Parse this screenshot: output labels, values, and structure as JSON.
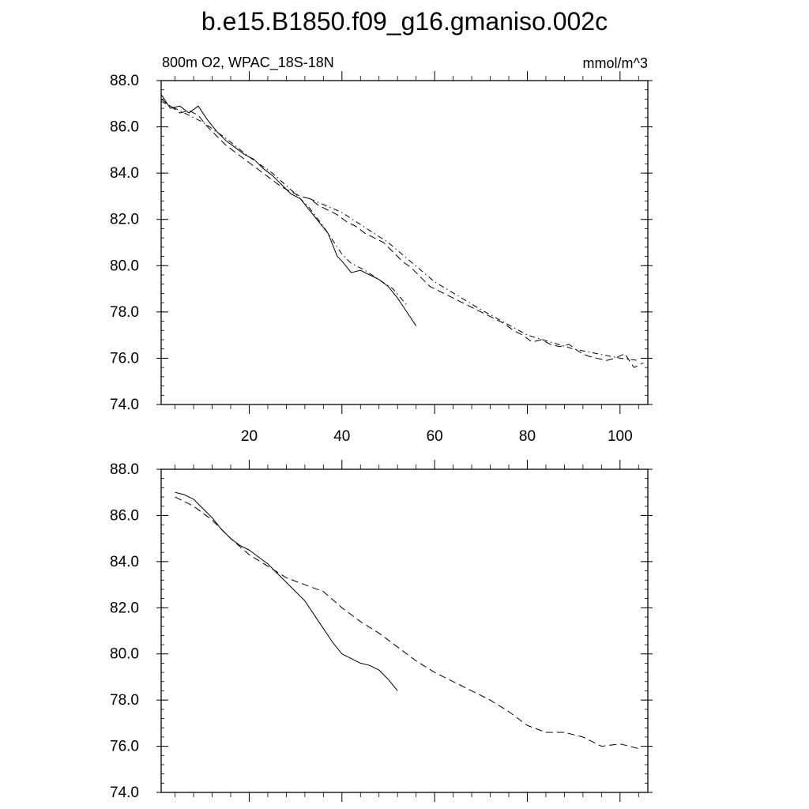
{
  "chart_data": [
    {
      "type": "line",
      "title": "b.e15.B1850.f09_g16.gmaniso.002c",
      "subtitle_left": "800m O2, WPAC_18S-18N",
      "subtitle_right": "mmol/m^3",
      "xlabel": "",
      "ylabel": "",
      "xlim": [
        1,
        106
      ],
      "ylim": [
        74.0,
        88.0
      ],
      "x_ticks": [
        20,
        40,
        60,
        80,
        100
      ],
      "x_tick_labels": [
        "20",
        "40",
        "60",
        "80",
        "100"
      ],
      "y_ticks": [
        74.0,
        76.0,
        78.0,
        80.0,
        82.0,
        84.0,
        86.0,
        88.0
      ],
      "y_tick_labels": [
        "74.0",
        "76.0",
        "78.0",
        "80.0",
        "82.0",
        "84.0",
        "86.0",
        "88.0"
      ],
      "grid": false,
      "series": [
        {
          "style": "solid",
          "x": [
            1,
            3,
            5,
            7,
            9,
            11,
            13,
            15,
            17,
            19,
            21,
            23,
            25,
            27,
            29,
            31,
            33,
            35,
            37,
            39,
            40,
            42,
            44,
            46,
            48,
            50,
            52,
            54,
            56
          ],
          "values": [
            87.4,
            86.8,
            86.9,
            86.6,
            86.9,
            86.3,
            85.8,
            85.4,
            85.1,
            84.8,
            84.6,
            84.2,
            83.9,
            83.5,
            83.1,
            82.9,
            82.4,
            81.9,
            81.4,
            80.4,
            80.2,
            79.7,
            79.8,
            79.6,
            79.4,
            79.1,
            78.6,
            78.0,
            77.4
          ]
        },
        {
          "style": "dash",
          "x": [
            1,
            3,
            5,
            7,
            9,
            11,
            13,
            15,
            17,
            19,
            21,
            23,
            25,
            27,
            29,
            31,
            33,
            35,
            37,
            39,
            41,
            43,
            45,
            47,
            49,
            51,
            53,
            55,
            57,
            59,
            61,
            63,
            65,
            67,
            69,
            71,
            73,
            75,
            77,
            79,
            81,
            83,
            85,
            87,
            89,
            91,
            93,
            95,
            97,
            99,
            101,
            103,
            105
          ],
          "values": [
            87.2,
            86.9,
            86.6,
            86.7,
            86.5,
            86.0,
            85.6,
            85.2,
            84.9,
            84.6,
            84.3,
            84.0,
            83.7,
            83.4,
            83.2,
            83.0,
            82.9,
            82.6,
            82.4,
            82.2,
            81.9,
            81.7,
            81.4,
            81.2,
            81.0,
            80.6,
            80.2,
            79.9,
            79.5,
            79.1,
            78.9,
            78.7,
            78.5,
            78.3,
            78.1,
            77.9,
            77.7,
            77.5,
            77.2,
            77.0,
            76.7,
            76.8,
            76.6,
            76.5,
            76.6,
            76.3,
            76.1,
            76.0,
            75.9,
            76.0,
            76.2,
            75.6,
            75.8
          ]
        },
        {
          "style": "dashdot",
          "x": [
            1,
            5,
            10,
            15,
            20,
            25,
            30,
            33,
            36,
            38,
            40,
            42,
            45,
            48,
            51,
            54
          ],
          "values": [
            87.1,
            86.7,
            86.2,
            85.5,
            84.7,
            84.0,
            83.1,
            82.5,
            81.7,
            81.1,
            80.5,
            80.1,
            79.8,
            79.4,
            79.0,
            78.3
          ]
        },
        {
          "style": "dashdot",
          "x": [
            33,
            40,
            50,
            60,
            70,
            80,
            90,
            100,
            104
          ],
          "values": [
            82.9,
            82.3,
            81.0,
            79.3,
            78.1,
            77.0,
            76.4,
            76.0,
            75.9
          ]
        }
      ]
    },
    {
      "type": "line",
      "title": "",
      "xlabel": "",
      "ylabel": "",
      "xlim": [
        1,
        106
      ],
      "ylim": [
        74.0,
        88.0
      ],
      "x_ticks": [
        20,
        40,
        60,
        80,
        100
      ],
      "x_tick_labels": [],
      "y_ticks": [
        74.0,
        76.0,
        78.0,
        80.0,
        82.0,
        84.0,
        86.0,
        88.0
      ],
      "y_tick_labels": [
        "74.0",
        "76.0",
        "78.0",
        "80.0",
        "82.0",
        "84.0",
        "86.0",
        "88.0"
      ],
      "grid": false,
      "series": [
        {
          "style": "solid",
          "x": [
            4,
            6,
            8,
            10,
            12,
            14,
            16,
            18,
            20,
            22,
            24,
            26,
            28,
            30,
            32,
            34,
            36,
            38,
            40,
            42,
            44,
            46,
            48,
            50,
            52
          ],
          "values": [
            87.0,
            86.9,
            86.7,
            86.3,
            85.9,
            85.4,
            85.0,
            84.7,
            84.5,
            84.2,
            83.9,
            83.5,
            83.1,
            82.7,
            82.3,
            81.7,
            81.1,
            80.5,
            80.0,
            79.8,
            79.6,
            79.5,
            79.3,
            78.9,
            78.4
          ]
        },
        {
          "style": "dash",
          "x": [
            4,
            8,
            12,
            16,
            20,
            24,
            28,
            32,
            36,
            40,
            44,
            48,
            52,
            56,
            60,
            64,
            68,
            72,
            76,
            80,
            84,
            88,
            92,
            96,
            100,
            104
          ],
          "values": [
            86.8,
            86.4,
            85.8,
            85.0,
            84.3,
            83.8,
            83.3,
            83.0,
            82.7,
            82.0,
            81.4,
            80.9,
            80.3,
            79.7,
            79.2,
            78.8,
            78.4,
            78.0,
            77.5,
            76.9,
            76.6,
            76.6,
            76.4,
            76.0,
            76.1,
            75.9
          ]
        }
      ]
    }
  ]
}
